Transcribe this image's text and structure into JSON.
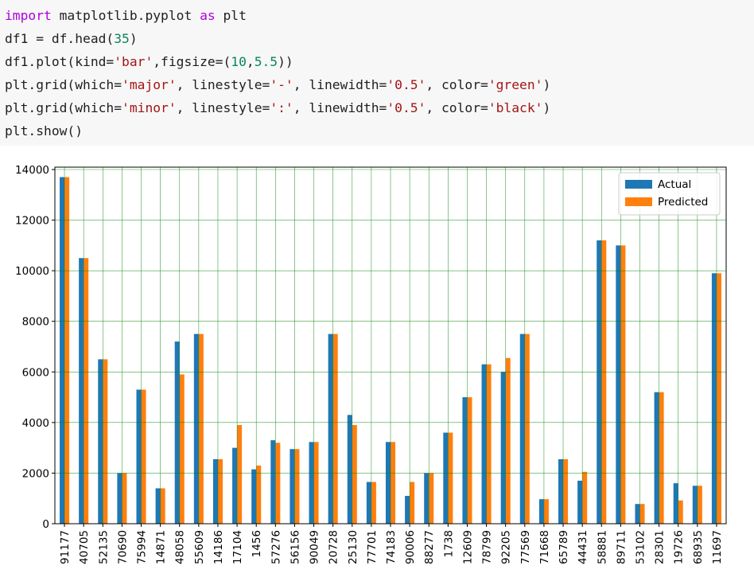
{
  "code": {
    "lines": [
      [
        {
          "t": "import",
          "c": "kw"
        },
        {
          "t": " matplotlib.pyplot ",
          "c": ""
        },
        {
          "t": "as",
          "c": "kw"
        },
        {
          "t": " plt",
          "c": ""
        }
      ],
      [
        {
          "t": "df1 = df.head(",
          "c": ""
        },
        {
          "t": "35",
          "c": "num"
        },
        {
          "t": ")",
          "c": ""
        }
      ],
      [
        {
          "t": "df1.plot(kind=",
          "c": ""
        },
        {
          "t": "'bar'",
          "c": "str"
        },
        {
          "t": ",figsize=(",
          "c": ""
        },
        {
          "t": "10",
          "c": "num"
        },
        {
          "t": ",",
          "c": ""
        },
        {
          "t": "5.5",
          "c": "num"
        },
        {
          "t": "))",
          "c": ""
        }
      ],
      [
        {
          "t": "plt.grid(which=",
          "c": ""
        },
        {
          "t": "'major'",
          "c": "str"
        },
        {
          "t": ", linestyle=",
          "c": ""
        },
        {
          "t": "'-'",
          "c": "str"
        },
        {
          "t": ", linewidth=",
          "c": ""
        },
        {
          "t": "'0.5'",
          "c": "str"
        },
        {
          "t": ", color=",
          "c": ""
        },
        {
          "t": "'green'",
          "c": "str"
        },
        {
          "t": ")",
          "c": ""
        }
      ],
      [
        {
          "t": "plt.grid(which=",
          "c": ""
        },
        {
          "t": "'minor'",
          "c": "str"
        },
        {
          "t": ", linestyle=",
          "c": ""
        },
        {
          "t": "':'",
          "c": "str"
        },
        {
          "t": ", linewidth=",
          "c": ""
        },
        {
          "t": "'0.5'",
          "c": "str"
        },
        {
          "t": ", color=",
          "c": ""
        },
        {
          "t": "'black'",
          "c": "str"
        },
        {
          "t": ")",
          "c": ""
        }
      ],
      [
        {
          "t": "plt.show()",
          "c": ""
        }
      ]
    ]
  },
  "chart_data": {
    "type": "bar",
    "categories": [
      "91177",
      "40705",
      "52135",
      "70690",
      "75994",
      "14871",
      "48058",
      "55609",
      "14186",
      "17104",
      "1456",
      "57276",
      "56156",
      "90049",
      "20728",
      "25130",
      "77701",
      "74183",
      "90006",
      "88277",
      "1738",
      "12609",
      "78799",
      "92205",
      "77569",
      "71668",
      "65789",
      "44431",
      "58881",
      "89711",
      "53102",
      "28301",
      "19726",
      "68935",
      "11697"
    ],
    "series": [
      {
        "name": "Actual",
        "color": "#1f77b4",
        "values": [
          13700,
          10500,
          6500,
          2000,
          5300,
          1400,
          7200,
          7500,
          2550,
          3000,
          2150,
          3300,
          2950,
          3230,
          7500,
          4300,
          1650,
          3230,
          1100,
          2000,
          3600,
          5000,
          6300,
          6000,
          7500,
          970,
          2550,
          1700,
          11200,
          11000,
          780,
          5200,
          1600,
          1500,
          9900
        ]
      },
      {
        "name": "Predicted",
        "color": "#ff7f0e",
        "values": [
          13700,
          10500,
          6500,
          2000,
          5300,
          1400,
          5900,
          7500,
          2550,
          3900,
          2300,
          3200,
          2950,
          3230,
          7500,
          3900,
          1650,
          3230,
          1650,
          2000,
          3600,
          5000,
          6300,
          6550,
          7500,
          970,
          2550,
          2050,
          11200,
          11000,
          780,
          5200,
          920,
          1500,
          9900
        ]
      }
    ],
    "ylim": [
      0,
      14000
    ],
    "yticks": [
      0,
      2000,
      4000,
      6000,
      8000,
      10000,
      12000,
      14000
    ],
    "grid": {
      "major_color": "green",
      "minor_color": "black"
    },
    "legend_position": "top-right"
  }
}
